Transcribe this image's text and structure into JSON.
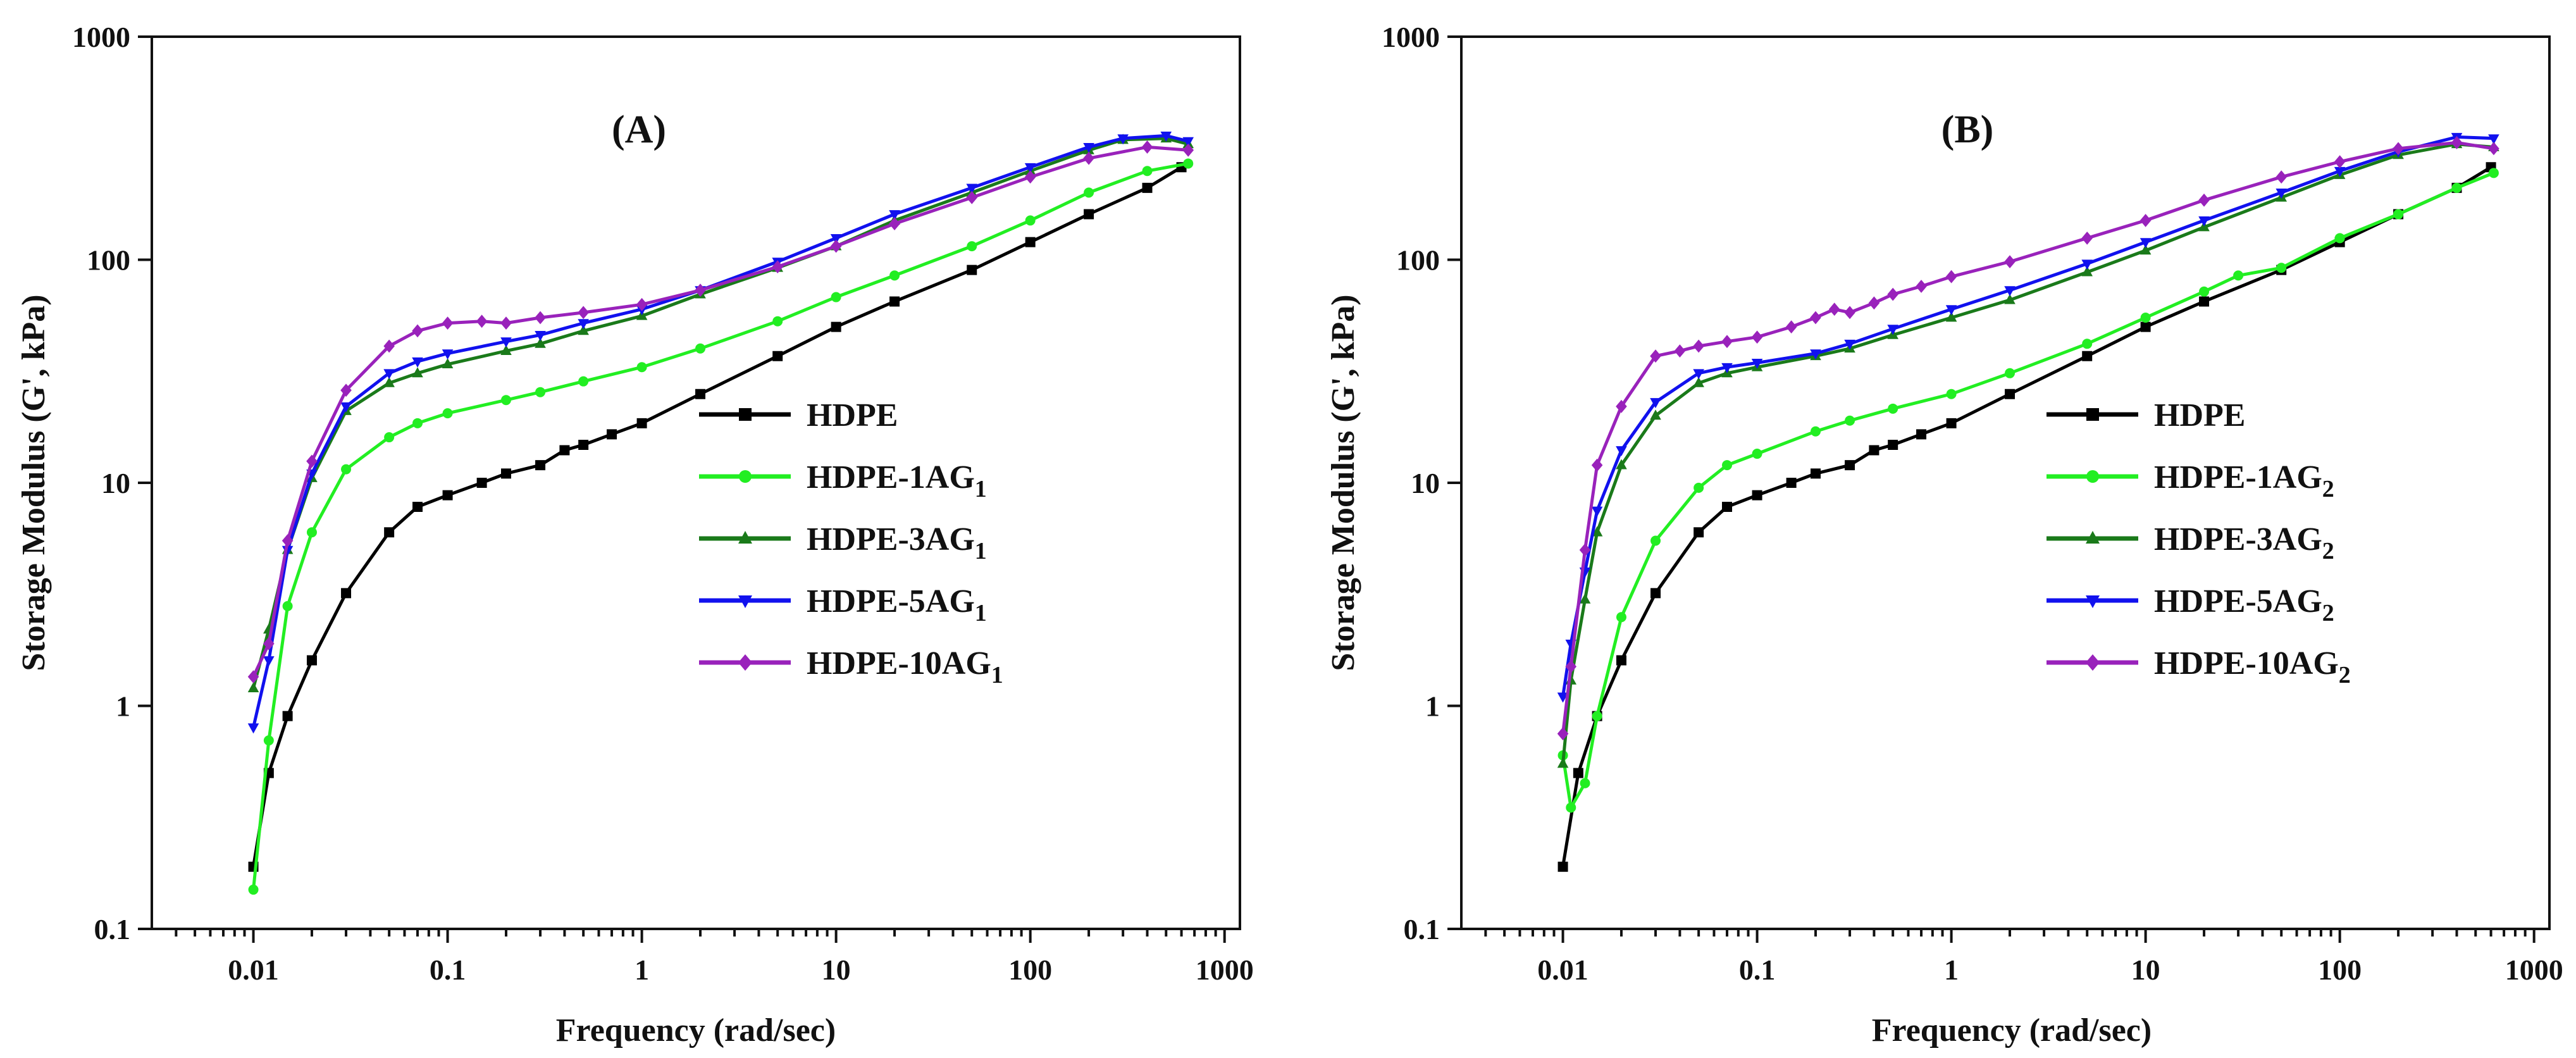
{
  "chart_data": [
    {
      "type": "line",
      "title": "(A)",
      "xlabel": "Frequency (rad/sec)",
      "ylabel": "Storage Modulus (G', kPa)",
      "xscale": "log",
      "yscale": "log",
      "xlim": [
        0.003,
        1200
      ],
      "ylim": [
        0.1,
        1000
      ],
      "xticks": [
        "0.01",
        "0.1",
        "1",
        "10",
        "100",
        "1000"
      ],
      "yticks": [
        "0.1",
        "1",
        "10",
        "100",
        "1000"
      ],
      "legend_position": "center-right",
      "grid": false,
      "series": [
        {
          "name": "HDPE",
          "sub": "",
          "color": "#000000",
          "marker": "square",
          "points": [
            [
              0.01,
              0.19
            ],
            [
              0.012,
              0.5
            ],
            [
              0.015,
              0.9
            ],
            [
              0.02,
              1.6
            ],
            [
              0.03,
              3.2
            ],
            [
              0.05,
              6.0
            ],
            [
              0.07,
              7.8
            ],
            [
              0.1,
              8.8
            ],
            [
              0.15,
              10
            ],
            [
              0.2,
              11
            ],
            [
              0.3,
              12
            ],
            [
              0.4,
              14
            ],
            [
              0.5,
              14.8
            ],
            [
              0.7,
              16.5
            ],
            [
              1,
              18.5
            ],
            [
              2,
              25
            ],
            [
              5,
              37
            ],
            [
              10,
              50
            ],
            [
              20,
              65
            ],
            [
              50,
              90
            ],
            [
              100,
              120
            ],
            [
              200,
              160
            ],
            [
              400,
              210
            ],
            [
              600,
              260
            ]
          ]
        },
        {
          "name": "HDPE-1AG",
          "sub": "1",
          "color": "#22ee22",
          "marker": "circle",
          "points": [
            [
              0.01,
              0.15
            ],
            [
              0.012,
              0.7
            ],
            [
              0.015,
              2.8
            ],
            [
              0.02,
              6
            ],
            [
              0.03,
              11.5
            ],
            [
              0.05,
              16
            ],
            [
              0.07,
              18.5
            ],
            [
              0.1,
              20.5
            ],
            [
              0.2,
              23.5
            ],
            [
              0.3,
              25.5
            ],
            [
              0.5,
              28.5
            ],
            [
              1,
              33
            ],
            [
              2,
              40
            ],
            [
              5,
              53
            ],
            [
              10,
              68
            ],
            [
              20,
              85
            ],
            [
              50,
              115
            ],
            [
              100,
              150
            ],
            [
              200,
              200
            ],
            [
              400,
              250
            ],
            [
              650,
              270
            ]
          ]
        },
        {
          "name": "HDPE-3AG",
          "sub": "1",
          "color": "#1a7a1a",
          "marker": "triangle-up",
          "points": [
            [
              0.01,
              1.2
            ],
            [
              0.012,
              2.2
            ],
            [
              0.015,
              5
            ],
            [
              0.02,
              10.5
            ],
            [
              0.03,
              21
            ],
            [
              0.05,
              28
            ],
            [
              0.07,
              31
            ],
            [
              0.1,
              34
            ],
            [
              0.2,
              39
            ],
            [
              0.3,
              42
            ],
            [
              0.5,
              48
            ],
            [
              1,
              56
            ],
            [
              2,
              70
            ],
            [
              5,
              92
            ],
            [
              10,
              115
            ],
            [
              20,
              150
            ],
            [
              50,
              200
            ],
            [
              100,
              250
            ],
            [
              200,
              310
            ],
            [
              300,
              345
            ],
            [
              500,
              350
            ],
            [
              650,
              330
            ]
          ]
        },
        {
          "name": "HDPE-5AG",
          "sub": "1",
          "color": "#1111ee",
          "marker": "triangle-down",
          "points": [
            [
              0.01,
              0.8
            ],
            [
              0.012,
              1.6
            ],
            [
              0.015,
              5
            ],
            [
              0.02,
              11
            ],
            [
              0.03,
              22
            ],
            [
              0.05,
              31
            ],
            [
              0.07,
              35
            ],
            [
              0.1,
              38
            ],
            [
              0.2,
              43
            ],
            [
              0.3,
              46
            ],
            [
              0.5,
              52
            ],
            [
              1,
              60
            ],
            [
              2,
              73
            ],
            [
              5,
              98
            ],
            [
              10,
              125
            ],
            [
              20,
              160
            ],
            [
              50,
              210
            ],
            [
              100,
              260
            ],
            [
              200,
              320
            ],
            [
              300,
              350
            ],
            [
              500,
              360
            ],
            [
              650,
              340
            ]
          ]
        },
        {
          "name": "HDPE-10AG",
          "sub": "1",
          "color": "#9922bb",
          "marker": "diamond",
          "points": [
            [
              0.01,
              1.35
            ],
            [
              0.012,
              1.9
            ],
            [
              0.015,
              5.5
            ],
            [
              0.02,
              12.5
            ],
            [
              0.03,
              26
            ],
            [
              0.05,
              41
            ],
            [
              0.07,
              48
            ],
            [
              0.1,
              52
            ],
            [
              0.15,
              53
            ],
            [
              0.2,
              52
            ],
            [
              0.3,
              55
            ],
            [
              0.5,
              58
            ],
            [
              1,
              63
            ],
            [
              2,
              73
            ],
            [
              5,
              93
            ],
            [
              10,
              115
            ],
            [
              20,
              145
            ],
            [
              50,
              190
            ],
            [
              100,
              235
            ],
            [
              200,
              285
            ],
            [
              400,
              320
            ],
            [
              650,
              310
            ]
          ]
        }
      ]
    },
    {
      "type": "line",
      "title": "(B)",
      "xlabel": "Frequency (rad/sec)",
      "ylabel": "Storage Modulus (G', kPa)",
      "xscale": "log",
      "yscale": "log",
      "xlim": [
        0.003,
        1200
      ],
      "ylim": [
        0.1,
        1000
      ],
      "xticks": [
        "0.01",
        "0.1",
        "1",
        "10",
        "100",
        "1000"
      ],
      "yticks": [
        "0.1",
        "1",
        "10",
        "100",
        "1000"
      ],
      "legend_position": "center-right",
      "grid": false,
      "series": [
        {
          "name": "HDPE",
          "sub": "",
          "color": "#000000",
          "marker": "square",
          "points": [
            [
              0.01,
              0.19
            ],
            [
              0.012,
              0.5
            ],
            [
              0.015,
              0.9
            ],
            [
              0.02,
              1.6
            ],
            [
              0.03,
              3.2
            ],
            [
              0.05,
              6.0
            ],
            [
              0.07,
              7.8
            ],
            [
              0.1,
              8.8
            ],
            [
              0.15,
              10
            ],
            [
              0.2,
              11
            ],
            [
              0.3,
              12
            ],
            [
              0.4,
              14
            ],
            [
              0.5,
              14.8
            ],
            [
              0.7,
              16.5
            ],
            [
              1,
              18.5
            ],
            [
              2,
              25
            ],
            [
              5,
              37
            ],
            [
              10,
              50
            ],
            [
              20,
              65
            ],
            [
              50,
              90
            ],
            [
              100,
              120
            ],
            [
              200,
              160
            ],
            [
              400,
              210
            ],
            [
              600,
              260
            ]
          ]
        },
        {
          "name": "HDPE-1AG",
          "sub": "2",
          "color": "#22ee22",
          "marker": "circle",
          "points": [
            [
              0.01,
              0.6
            ],
            [
              0.011,
              0.35
            ],
            [
              0.013,
              0.45
            ],
            [
              0.015,
              0.9
            ],
            [
              0.02,
              2.5
            ],
            [
              0.03,
              5.5
            ],
            [
              0.05,
              9.5
            ],
            [
              0.07,
              12
            ],
            [
              0.1,
              13.5
            ],
            [
              0.2,
              17
            ],
            [
              0.3,
              19
            ],
            [
              0.5,
              21.5
            ],
            [
              1,
              25
            ],
            [
              2,
              31
            ],
            [
              5,
              42
            ],
            [
              10,
              55
            ],
            [
              20,
              72
            ],
            [
              30,
              85
            ],
            [
              50,
              92
            ],
            [
              100,
              125
            ],
            [
              200,
              160
            ],
            [
              400,
              210
            ],
            [
              620,
              245
            ]
          ]
        },
        {
          "name": "HDPE-3AG",
          "sub": "2",
          "color": "#1a7a1a",
          "marker": "triangle-up",
          "points": [
            [
              0.01,
              0.55
            ],
            [
              0.011,
              1.3
            ],
            [
              0.013,
              3
            ],
            [
              0.015,
              6
            ],
            [
              0.02,
              12
            ],
            [
              0.03,
              20
            ],
            [
              0.05,
              28
            ],
            [
              0.07,
              31
            ],
            [
              0.1,
              33
            ],
            [
              0.2,
              37
            ],
            [
              0.3,
              40
            ],
            [
              0.5,
              46
            ],
            [
              1,
              55
            ],
            [
              2,
              66
            ],
            [
              5,
              88
            ],
            [
              10,
              110
            ],
            [
              20,
              140
            ],
            [
              50,
              190
            ],
            [
              100,
              240
            ],
            [
              200,
              295
            ],
            [
              400,
              330
            ],
            [
              620,
              320
            ]
          ]
        },
        {
          "name": "HDPE-5AG",
          "sub": "2",
          "color": "#1111ee",
          "marker": "triangle-down",
          "points": [
            [
              0.01,
              1.1
            ],
            [
              0.011,
              1.9
            ],
            [
              0.013,
              4
            ],
            [
              0.015,
              7.5
            ],
            [
              0.02,
              14
            ],
            [
              0.03,
              23
            ],
            [
              0.05,
              31
            ],
            [
              0.07,
              33
            ],
            [
              0.1,
              34.5
            ],
            [
              0.2,
              38
            ],
            [
              0.3,
              42
            ],
            [
              0.5,
              49
            ],
            [
              1,
              60
            ],
            [
              2,
              73
            ],
            [
              5,
              96
            ],
            [
              10,
              120
            ],
            [
              20,
              150
            ],
            [
              50,
              200
            ],
            [
              100,
              250
            ],
            [
              200,
              305
            ],
            [
              400,
              355
            ],
            [
              620,
              350
            ]
          ]
        },
        {
          "name": "HDPE-10AG",
          "sub": "2",
          "color": "#9922bb",
          "marker": "diamond",
          "points": [
            [
              0.01,
              0.75
            ],
            [
              0.011,
              1.5
            ],
            [
              0.013,
              5
            ],
            [
              0.015,
              12
            ],
            [
              0.02,
              22
            ],
            [
              0.03,
              37
            ],
            [
              0.04,
              39
            ],
            [
              0.05,
              41
            ],
            [
              0.07,
              43
            ],
            [
              0.1,
              45
            ],
            [
              0.15,
              50
            ],
            [
              0.2,
              55
            ],
            [
              0.25,
              60
            ],
            [
              0.3,
              58
            ],
            [
              0.4,
              64
            ],
            [
              0.5,
              70
            ],
            [
              0.7,
              76
            ],
            [
              1,
              84
            ],
            [
              2,
              98
            ],
            [
              5,
              125
            ],
            [
              10,
              150
            ],
            [
              20,
              185
            ],
            [
              50,
              235
            ],
            [
              100,
              275
            ],
            [
              200,
              315
            ],
            [
              400,
              335
            ],
            [
              620,
              315
            ]
          ]
        }
      ]
    }
  ]
}
